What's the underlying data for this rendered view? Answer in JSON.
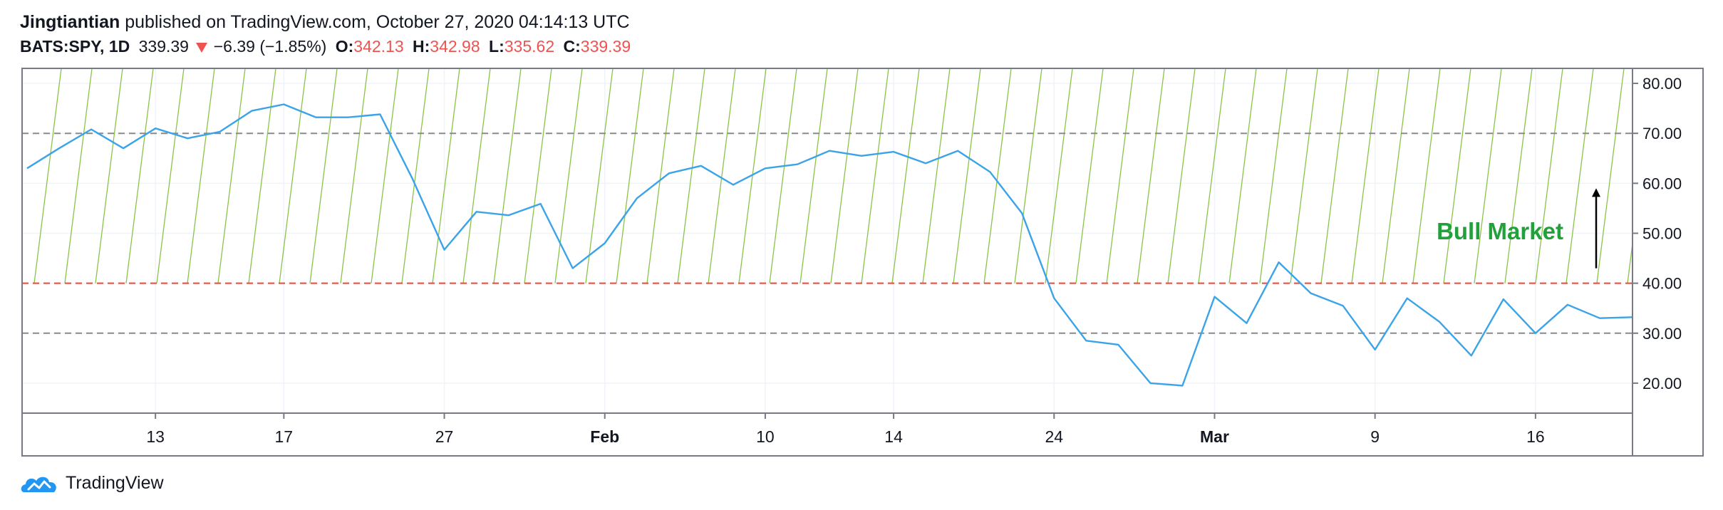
{
  "header": {
    "author": "Jingtiantian",
    "published_text": "published on TradingView.com, October 27, 2020 04:14:13 UTC",
    "symbol": "BATS:SPY, 1D",
    "price": "339.39",
    "change": "−6.39 (−1.85%)",
    "open_label": "O:",
    "open": "342.13",
    "high_label": "H:",
    "high": "342.98",
    "low_label": "L:",
    "low": "335.62",
    "close_label": "C:",
    "close": "339.39"
  },
  "footer": {
    "brand": "TradingView"
  },
  "colors": {
    "line": "#3ba3e8",
    "hatch": "#8bc34a",
    "red_level": "#f44336",
    "annotation": "#22a03a",
    "axis": "#787b86"
  },
  "chart_data": {
    "type": "line",
    "ylim": [
      14,
      83
    ],
    "y_ticks": [
      "20.00",
      "30.00",
      "40.00",
      "50.00",
      "60.00",
      "70.00",
      "80.00"
    ],
    "x_ticks": [
      {
        "label": "13",
        "i": 4
      },
      {
        "label": "17",
        "i": 8
      },
      {
        "label": "27",
        "i": 13
      },
      {
        "label": "Feb",
        "i": 18
      },
      {
        "label": "10",
        "i": 23
      },
      {
        "label": "14",
        "i": 27
      },
      {
        "label": "24",
        "i": 32
      },
      {
        "label": "Mar",
        "i": 37
      },
      {
        "label": "9",
        "i": 42
      },
      {
        "label": "16",
        "i": 47
      }
    ],
    "series": [
      {
        "values": [
          63,
          67,
          70.8,
          67,
          71,
          69,
          70.3,
          74.5,
          75.8,
          73.2,
          73.2,
          73.8,
          61,
          46.7,
          54.3,
          53.6,
          55.9,
          43,
          48,
          57,
          62,
          63.5,
          59.7,
          63,
          63.8,
          66.5,
          65.5,
          66.3,
          64,
          66.5,
          62.3,
          54,
          37,
          28.5,
          27.7,
          20,
          19.5,
          37.3,
          32,
          44.2,
          38,
          35.5,
          26.7,
          37,
          32.3,
          25.5,
          36.8,
          30,
          35.7,
          33,
          33.2
        ]
      }
    ],
    "levels": [
      {
        "value": 70,
        "style": "dashed-gray"
      },
      {
        "value": 40,
        "style": "dashed-red"
      },
      {
        "value": 30,
        "style": "dashed-gray"
      }
    ],
    "bull_zone": [
      40,
      83
    ],
    "annotation": {
      "text": "Bull Market",
      "value": 50.5,
      "arrow_from": 43,
      "arrow_to": 59
    }
  }
}
